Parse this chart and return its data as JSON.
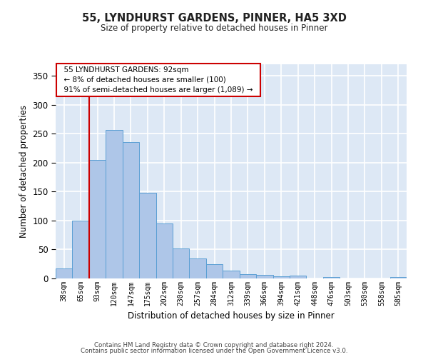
{
  "title_line1": "55, LYNDHURST GARDENS, PINNER, HA5 3XD",
  "title_line2": "Size of property relative to detached houses in Pinner",
  "xlabel": "Distribution of detached houses by size in Pinner",
  "ylabel": "Number of detached properties",
  "categories": [
    "38sqm",
    "65sqm",
    "93sqm",
    "120sqm",
    "147sqm",
    "175sqm",
    "202sqm",
    "230sqm",
    "257sqm",
    "284sqm",
    "312sqm",
    "339sqm",
    "366sqm",
    "394sqm",
    "421sqm",
    "448sqm",
    "476sqm",
    "503sqm",
    "530sqm",
    "558sqm",
    "585sqm"
  ],
  "values": [
    17,
    100,
    205,
    257,
    235,
    148,
    95,
    52,
    35,
    25,
    13,
    8,
    6,
    4,
    5,
    0,
    2,
    0,
    0,
    0,
    2
  ],
  "bar_color": "#aec6e8",
  "bar_edge_color": "#5a9fd4",
  "background_color": "#dde8f5",
  "grid_color": "#ffffff",
  "vline_color": "#cc0000",
  "annotation_text": "  55 LYNDHURST GARDENS: 92sqm  \n  ← 8% of detached houses are smaller (100)  \n  91% of semi-detached houses are larger (1,089) →  ",
  "annotation_box_color": "#ffffff",
  "annotation_box_edge": "#cc0000",
  "footer_line1": "Contains HM Land Registry data © Crown copyright and database right 2024.",
  "footer_line2": "Contains public sector information licensed under the Open Government Licence v3.0.",
  "ylim": [
    0,
    370
  ],
  "yticks": [
    0,
    50,
    100,
    150,
    200,
    250,
    300,
    350
  ],
  "vline_pos": 1.5
}
